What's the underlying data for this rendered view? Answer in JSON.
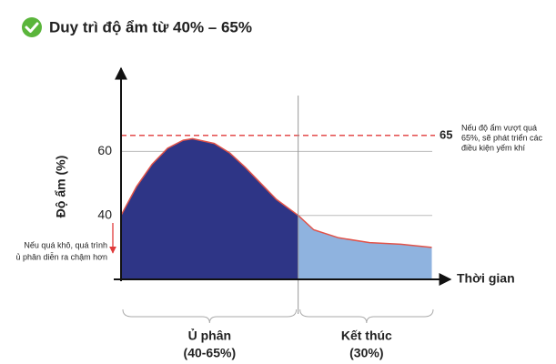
{
  "chart_data": {
    "type": "area",
    "title": "Duy trì độ ẩm từ 40% – 65%",
    "y_label": "Độ ẩm (%)",
    "x_label": "Thời gian",
    "xlim": [
      0,
      106
    ],
    "ylim": [
      20,
      86
    ],
    "yticks": [
      40,
      60
    ],
    "grid": true,
    "threshold": 65,
    "threshold_color": "#e03a3a",
    "line_color": "#e0534a",
    "series": [
      {
        "name": "Ủ phân",
        "range": "(40-65%)",
        "color": "#2e3586",
        "x": [
          0,
          5,
          10,
          15,
          20,
          23,
          30,
          35,
          40,
          45,
          50,
          57
        ],
        "values": [
          40,
          49,
          56,
          61,
          63.5,
          64,
          62.5,
          59.5,
          55,
          50,
          45,
          40
        ]
      },
      {
        "name": "Kết thúc",
        "range": "(30%)",
        "color": "#8fb3df",
        "x": [
          57,
          62,
          70,
          80,
          90,
          100
        ],
        "values": [
          40,
          35.5,
          33,
          31.5,
          31,
          30
        ]
      }
    ],
    "notes": [
      {
        "lines": [
          "Nếu độ ẩm vượt quá",
          "65%, sẽ phát triển các",
          "điều kiện yếm khí"
        ]
      },
      {
        "lines": [
          "Nếu quá khô, quá trình",
          "ủ phân diễn ra chậm hơn"
        ]
      }
    ]
  }
}
